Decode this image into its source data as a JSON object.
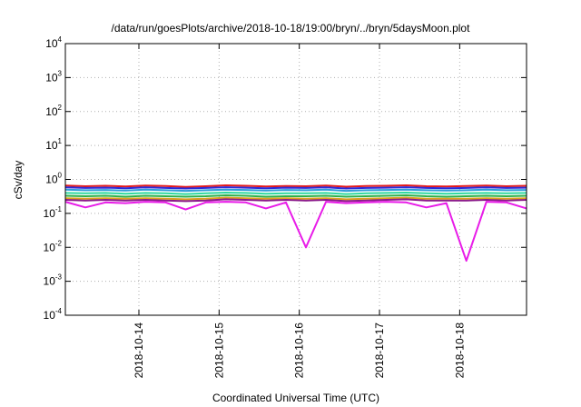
{
  "chart_data": {
    "type": "line",
    "title": "/data/run/goesPlots/archive/2018-10-18/19:00/bryn/../bryn/5daysMoon.plot",
    "xlabel": "Coordinated Universal Time (UTC)",
    "ylabel": "cSv/day",
    "yscale": "log",
    "ylim": [
      0.0001,
      10000
    ],
    "xlim": [
      "2018-10-13T02:00",
      "2018-10-18T20:00"
    ],
    "grid": true,
    "y_tick_labels": [
      {
        "base": "10",
        "exp": "-4"
      },
      {
        "base": "10",
        "exp": "-3"
      },
      {
        "base": "10",
        "exp": "-2"
      },
      {
        "base": "10",
        "exp": "-1"
      },
      {
        "base": "10",
        "exp": "0"
      },
      {
        "base": "10",
        "exp": "1"
      },
      {
        "base": "10",
        "exp": "2"
      },
      {
        "base": "10",
        "exp": "3"
      },
      {
        "base": "10",
        "exp": "4"
      }
    ],
    "x_tick_labels": [
      "2018-10-14",
      "2018-10-15",
      "2018-10-16",
      "2018-10-17",
      "2018-10-18"
    ],
    "x_tick_dates": [
      "2018-10-14T00:00",
      "2018-10-15T00:00",
      "2018-10-16T00:00",
      "2018-10-17T00:00",
      "2018-10-18T00:00"
    ],
    "x": [
      "2018-10-13T02:00",
      "2018-10-13T08:00",
      "2018-10-13T14:00",
      "2018-10-13T20:00",
      "2018-10-14T02:00",
      "2018-10-14T08:00",
      "2018-10-14T14:00",
      "2018-10-14T20:00",
      "2018-10-15T02:00",
      "2018-10-15T08:00",
      "2018-10-15T14:00",
      "2018-10-15T20:00",
      "2018-10-16T02:00",
      "2018-10-16T08:00",
      "2018-10-16T14:00",
      "2018-10-16T20:00",
      "2018-10-17T02:00",
      "2018-10-17T08:00",
      "2018-10-17T14:00",
      "2018-10-17T20:00",
      "2018-10-18T02:00",
      "2018-10-18T08:00",
      "2018-10-18T14:00",
      "2018-10-18T20:00"
    ],
    "series": [
      {
        "color": "#e41a1c",
        "values": [
          0.66,
          0.63,
          0.65,
          0.62,
          0.66,
          0.64,
          0.6,
          0.63,
          0.67,
          0.65,
          0.62,
          0.64,
          0.63,
          0.66,
          0.61,
          0.64,
          0.65,
          0.67,
          0.63,
          0.62,
          0.64,
          0.66,
          0.63,
          0.65
        ]
      },
      {
        "color": "#2b2bd9",
        "values": [
          0.58,
          0.56,
          0.57,
          0.55,
          0.58,
          0.56,
          0.54,
          0.56,
          0.59,
          0.57,
          0.55,
          0.57,
          0.56,
          0.58,
          0.54,
          0.56,
          0.57,
          0.59,
          0.56,
          0.55,
          0.56,
          0.58,
          0.56,
          0.57
        ]
      },
      {
        "color": "#2f9bd9",
        "values": [
          0.5,
          0.48,
          0.49,
          0.47,
          0.5,
          0.48,
          0.46,
          0.48,
          0.5,
          0.49,
          0.47,
          0.49,
          0.48,
          0.5,
          0.46,
          0.48,
          0.49,
          0.5,
          0.48,
          0.47,
          0.48,
          0.5,
          0.48,
          0.49
        ]
      },
      {
        "color": "#2fd9a0",
        "values": [
          0.4,
          0.39,
          0.4,
          0.38,
          0.4,
          0.39,
          0.37,
          0.39,
          0.41,
          0.4,
          0.38,
          0.39,
          0.39,
          0.4,
          0.37,
          0.39,
          0.4,
          0.41,
          0.39,
          0.38,
          0.39,
          0.4,
          0.39,
          0.4
        ]
      },
      {
        "color": "#2fb04a",
        "values": [
          0.33,
          0.32,
          0.33,
          0.31,
          0.33,
          0.32,
          0.31,
          0.32,
          0.34,
          0.33,
          0.31,
          0.32,
          0.32,
          0.33,
          0.31,
          0.32,
          0.33,
          0.34,
          0.32,
          0.31,
          0.32,
          0.33,
          0.32,
          0.33
        ]
      },
      {
        "color": "#d9a020",
        "values": [
          0.28,
          0.27,
          0.28,
          0.27,
          0.28,
          0.27,
          0.26,
          0.27,
          0.29,
          0.28,
          0.27,
          0.28,
          0.27,
          0.28,
          0.26,
          0.27,
          0.28,
          0.29,
          0.27,
          0.27,
          0.27,
          0.28,
          0.27,
          0.28
        ]
      },
      {
        "color": "#8b1a8b",
        "values": [
          0.25,
          0.24,
          0.25,
          0.24,
          0.25,
          0.24,
          0.23,
          0.24,
          0.26,
          0.25,
          0.24,
          0.25,
          0.24,
          0.25,
          0.23,
          0.24,
          0.25,
          0.26,
          0.24,
          0.24,
          0.24,
          0.25,
          0.24,
          0.25
        ]
      },
      {
        "color": "#e81ce8",
        "values": [
          0.22,
          0.15,
          0.21,
          0.2,
          0.22,
          0.21,
          0.13,
          0.21,
          0.22,
          0.21,
          0.14,
          0.21,
          0.01,
          0.22,
          0.2,
          0.21,
          0.22,
          0.21,
          0.15,
          0.2,
          0.004,
          0.22,
          0.21,
          0.14
        ]
      }
    ]
  }
}
